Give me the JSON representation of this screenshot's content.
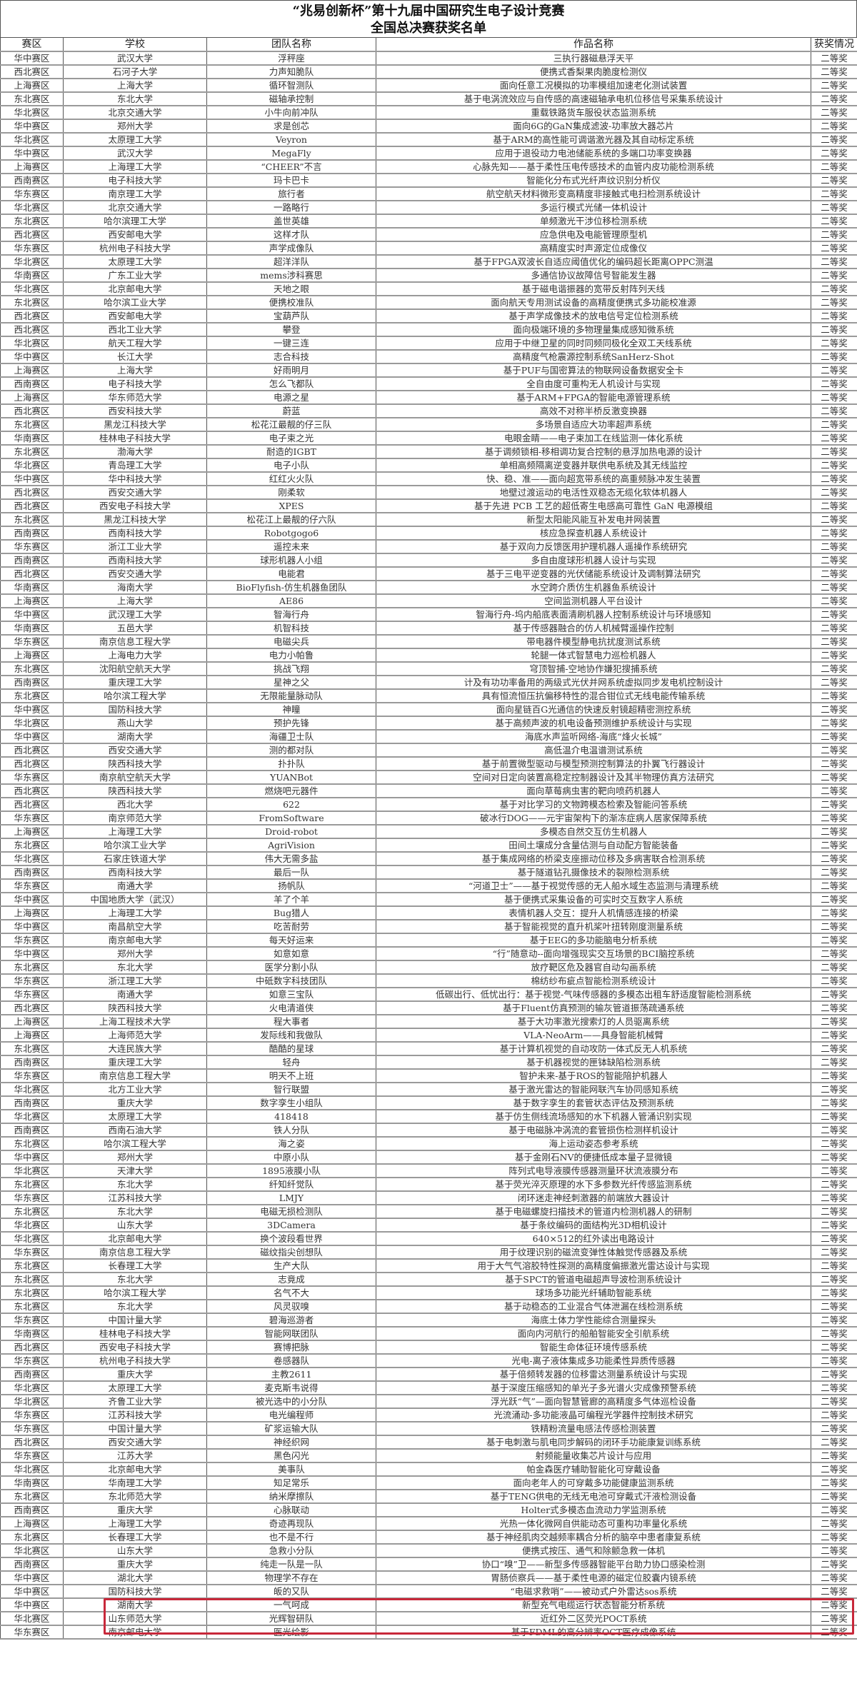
{
  "title": {
    "line1": "“兆易创新杯”第十九届中国研究生电子设计竞赛",
    "line2": "全国总决赛获奖名单"
  },
  "table": {
    "headers": [
      "赛区",
      "学校",
      "团队名称",
      "作品名称",
      "获奖情况"
    ],
    "rows": [
      [
        "华中赛区",
        "武汉大学",
        "浮秤座",
        "三执行器磁悬浮天平",
        "二等奖"
      ],
      [
        "西北赛区",
        "石河子大学",
        "力声知脆队",
        "便携式香梨果肉脆度检测仪",
        "二等奖"
      ],
      [
        "上海赛区",
        "上海大学",
        "循环智测队",
        "面向任意工况模拟的功率模组加速老化测试装置",
        "二等奖"
      ],
      [
        "东北赛区",
        "东北大学",
        "磁轴承控制",
        "基于电涡流效应与自传感的高速磁轴承电机位移信号采集系统设计",
        "二等奖"
      ],
      [
        "华北赛区",
        "北京交通大学",
        "小牛向前冲队",
        "重载铁路货车服役状态监测系统",
        "二等奖"
      ],
      [
        "华中赛区",
        "郑州大学",
        "求是创芯",
        "面向6G的GaN集成滤波-功率放大器芯片",
        "二等奖"
      ],
      [
        "华北赛区",
        "太原理工大学",
        "Veyron",
        "基于ARM的高性能可调谐激光器及其自动标定系统",
        "二等奖"
      ],
      [
        "华中赛区",
        "武汉大学",
        "MegaFly",
        "应用于退役动力电池储能系统的多端口功率变换器",
        "二等奖"
      ],
      [
        "上海赛区",
        "上海理工大学",
        "“CHEER”不言",
        "心脉先知——基于柔性压电传感技术的血管内皮功能检测系统",
        "二等奖"
      ],
      [
        "西南赛区",
        "电子科技大学",
        "玛卡巴卡",
        "智能化分布式光纤声纹识别分析仪",
        "二等奖"
      ],
      [
        "华东赛区",
        "南京理工大学",
        "旅行者",
        "航空航天材料微形变高精度非接触式电扫检测系统设计",
        "二等奖"
      ],
      [
        "华北赛区",
        "北京交通大学",
        "一路略行",
        "多运行模式光储一体机设计",
        "二等奖"
      ],
      [
        "东北赛区",
        "哈尔滨理工大学",
        "盖世英雄",
        "单频激光干涉位移检测系统",
        "二等奖"
      ],
      [
        "西北赛区",
        "西安邮电大学",
        "这样才队",
        "应急供电及电能管理原型机",
        "二等奖"
      ],
      [
        "华东赛区",
        "杭州电子科技大学",
        "声学成像队",
        "高精度实时声源定位成像仪",
        "二等奖"
      ],
      [
        "华北赛区",
        "太原理工大学",
        "超洋洋队",
        "基于FPGA双波长自适应阈值优化的编码超长距离OPPC测温",
        "二等奖"
      ],
      [
        "华南赛区",
        "广东工业大学",
        "mems涉科赛思",
        "多通信协议故障信号智能发生器",
        "二等奖"
      ],
      [
        "华北赛区",
        "北京邮电大学",
        "天地之眼",
        "基于磁电谐振器的宽带反射阵列天线",
        "二等奖"
      ],
      [
        "东北赛区",
        "哈尔滨工业大学",
        "便携校准队",
        "面向航天专用测试设备的高精度便携式多功能校准源",
        "二等奖"
      ],
      [
        "西北赛区",
        "西安邮电大学",
        "宝葫芦队",
        "基于声学成像技术的放电信号定位检测系统",
        "二等奖"
      ],
      [
        "西北赛区",
        "西北工业大学",
        "攀登",
        "面向极端环境的多物理量集成感知微系统",
        "二等奖"
      ],
      [
        "华北赛区",
        "航天工程大学",
        "一键三连",
        "应用于中继卫星的同时同频同极化全双工天线系统",
        "二等奖"
      ],
      [
        "华中赛区",
        "长江大学",
        "志合科技",
        "高精度气枪震源控制系统SanHerz-Shot",
        "二等奖"
      ],
      [
        "上海赛区",
        "上海大学",
        "好雨明月",
        "基于PUF与国密算法的物联网设备数据安全卡",
        "二等奖"
      ],
      [
        "西南赛区",
        "电子科技大学",
        "怎么飞都队",
        "全自由度可重构无人机设计与实现",
        "二等奖"
      ],
      [
        "上海赛区",
        "华东师范大学",
        "电源之星",
        "基于ARM+FPGA的智能电源管理系统",
        "二等奖"
      ],
      [
        "西北赛区",
        "西安科技大学",
        "蔚蓝",
        "高效不对称半桥反激变换器",
        "二等奖"
      ],
      [
        "东北赛区",
        "黑龙江科技大学",
        "松花江最靓的仔三队",
        "多场景自适应大功率超声系统",
        "二等奖"
      ],
      [
        "华南赛区",
        "桂林电子科技大学",
        "电子束之光",
        "电眼金睛——电子束加工在线监测一体化系统",
        "二等奖"
      ],
      [
        "东北赛区",
        "渤海大学",
        "耐造的IGBT",
        "基于调频锁相-移相调功复合控制的悬浮加热电源的设计",
        "二等奖"
      ],
      [
        "华北赛区",
        "青岛理工大学",
        "电子小队",
        "单相高频隔离逆变器并联供电系统及其无线监控",
        "二等奖"
      ],
      [
        "华中赛区",
        "华中科技大学",
        "红红火火队",
        "快、稳、准——面向超宽带系统的高重频脉冲发生装置",
        "二等奖"
      ],
      [
        "西北赛区",
        "西安交通大学",
        "刚柔软",
        "地壁过渡运动的电活性双稳态无缆化软体机器人",
        "二等奖"
      ],
      [
        "西北赛区",
        "西安电子科技大学",
        "XPES",
        "基于先进 PCB 工艺的超低寄生电感高可靠性 GaN 电源模组",
        "二等奖"
      ],
      [
        "东北赛区",
        "黑龙江科技大学",
        "松花江上最靓的仔六队",
        "新型太阳能风能互补发电并网装置",
        "二等奖"
      ],
      [
        "西南赛区",
        "西南科技大学",
        "Robotgogo6",
        "核应急探查机器人系统设计",
        "二等奖"
      ],
      [
        "华东赛区",
        "浙江工业大学",
        "遥控未来",
        "基于双向力反馈医用护理机器人遥操作系统研究",
        "二等奖"
      ],
      [
        "西南赛区",
        "西南科技大学",
        "球形机器人小组",
        "多自由度球形机器人设计与实现",
        "二等奖"
      ],
      [
        "西北赛区",
        "西安交通大学",
        "电能君",
        "基于三电平逆变器的光伏储能系统设计及调制算法研究",
        "二等奖"
      ],
      [
        "华南赛区",
        "海南大学",
        "BioFlyfish-仿生机器鱼团队",
        "水空跨介质仿生机器鱼系统设计",
        "二等奖"
      ],
      [
        "上海赛区",
        "上海大学",
        "AE86",
        "空间监测机器人平台设计",
        "二等奖"
      ],
      [
        "华中赛区",
        "武汉理工大学",
        "智海行舟",
        "智海行舟-坞内船底表面清刷机器人控制系统设计与环境感知",
        "二等奖"
      ],
      [
        "华南赛区",
        "五邑大学",
        "机智科技",
        "基于传感器融合的仿人机械臂遥操作控制",
        "二等奖"
      ],
      [
        "华东赛区",
        "南京信息工程大学",
        "电磁尖兵",
        "带电器件模型静电抗扰度测试系统",
        "二等奖"
      ],
      [
        "上海赛区",
        "上海电力大学",
        "电力小帕鲁",
        "轮腿一体式智慧电力巡检机器人",
        "二等奖"
      ],
      [
        "东北赛区",
        "沈阳航空航天大学",
        "挑战飞翔",
        "穹顶智捕-空地协作嫌犯搜捕系统",
        "二等奖"
      ],
      [
        "西南赛区",
        "重庆理工大学",
        "星神之父",
        "计及有功功率备用的两级式光伏并网系统虚拟同步发电机控制设计",
        "二等奖"
      ],
      [
        "东北赛区",
        "哈尔滨工程大学",
        "无限能量脉动队",
        "具有恒流恒压抗偏移特性的混合钳位式无线电能传输系统",
        "二等奖"
      ],
      [
        "华中赛区",
        "国防科技大学",
        "神瞳",
        "面向星链百G光通信的快速反射镜超精密测控系统",
        "二等奖"
      ],
      [
        "华北赛区",
        "燕山大学",
        "预护先锋",
        "基于高频声波的机电设备预测维护系统设计与实现",
        "二等奖"
      ],
      [
        "华中赛区",
        "湖南大学",
        "海疆卫士队",
        "海底水声监听网络-海底“烽火长城”",
        "二等奖"
      ],
      [
        "西北赛区",
        "西安交通大学",
        "测的都对队",
        "高低温介电温谱测试系统",
        "二等奖"
      ],
      [
        "西北赛区",
        "陕西科技大学",
        "扑扑队",
        "基于前置微型驱动与模型预测控制算法的扑翼飞行器设计",
        "二等奖"
      ],
      [
        "华东赛区",
        "南京航空航天大学",
        "YUANBot",
        "空间对日定向装置高稳定控制器设计及其半物理仿真方法研究",
        "二等奖"
      ],
      [
        "西北赛区",
        "陕西科技大学",
        "燃烧吧元器件",
        "面向草莓病虫害的靶向喷药机器人",
        "二等奖"
      ],
      [
        "西北赛区",
        "西北大学",
        "622",
        "基于对比学习的文物跨模态检索及智能问答系统",
        "二等奖"
      ],
      [
        "华东赛区",
        "南京师范大学",
        "FromSoftware",
        "破冰行DOG——元宇宙架构下的渐冻症病人居家保障系统",
        "二等奖"
      ],
      [
        "上海赛区",
        "上海理工大学",
        "Droid-robot",
        "多模态自然交互仿生机器人",
        "二等奖"
      ],
      [
        "东北赛区",
        "哈尔滨工业大学",
        "AgriVision",
        "田间土壤成分含量估测与自动配方智能装备",
        "二等奖"
      ],
      [
        "华北赛区",
        "石家庄铁道大学",
        "伟大无需多盐",
        "基于集成网络的桥梁支座振动位移及多病害联合检测系统",
        "二等奖"
      ],
      [
        "西南赛区",
        "西南科技大学",
        "最后一队",
        "基于隧道钻孔摄像技术的裂隙检测系统",
        "二等奖"
      ],
      [
        "华东赛区",
        "南通大学",
        "扬帆队",
        "“河道卫士”——基于视觉传感的无人船水域生态监测与清理系统",
        "二等奖"
      ],
      [
        "华中赛区",
        "中国地质大学（武汉）",
        "羊了个羊",
        "基于便携式采集设备的可实时交互数字人系统",
        "二等奖"
      ],
      [
        "上海赛区",
        "上海理工大学",
        "Bug猎人",
        "表情机器人交互：提升人机情感连接的桥梁",
        "二等奖"
      ],
      [
        "华中赛区",
        "南昌航空大学",
        "吃苦耐劳",
        "基于智能视觉的直升机桨叶扭转刚度测量系统",
        "二等奖"
      ],
      [
        "华东赛区",
        "南京邮电大学",
        "每天好运来",
        "基于EEG的多功能脑电分析系统",
        "二等奖"
      ],
      [
        "华中赛区",
        "郑州大学",
        "如意如意",
        "“行”随意动--面向增强现实交互场景的BCI脑控系统",
        "二等奖"
      ],
      [
        "东北赛区",
        "东北大学",
        "医学分割小队",
        "放疗靶区危及器官自动勾画系统",
        "二等奖"
      ],
      [
        "华东赛区",
        "浙江理工大学",
        "中砥数字科技团队",
        "棉纺纱布疵点智能检测系统设计",
        "二等奖"
      ],
      [
        "华东赛区",
        "南通大学",
        "如意三宝队",
        "低碳出行、低忧出行：基于视觉-气味传感器的多模态出租车舒适度智能检测系统",
        "二等奖"
      ],
      [
        "西北赛区",
        "陕西科技大学",
        "火电清道侠",
        "基于Fluent仿真预测的输灰管道振荡疏通系统",
        "二等奖"
      ],
      [
        "上海赛区",
        "上海工程技术大学",
        "程大事者",
        "基于大功率激光搜索灯的人员驱离系统",
        "二等奖"
      ],
      [
        "上海赛区",
        "上海师范大学",
        "发际线和我做队",
        "VLA-NeoArm——具身智能机械臂",
        "二等奖"
      ],
      [
        "东北赛区",
        "大连民族大学",
        "酷酷的星球",
        "基于计算机视觉的自动攻防一体式反无人机系统",
        "二等奖"
      ],
      [
        "西南赛区",
        "重庆理工大学",
        "轻舟",
        "基于机器视觉的匣钵缺陷检测系统",
        "二等奖"
      ],
      [
        "华东赛区",
        "南京信息工程大学",
        "明天不上班",
        "智护未来-基于ROS的智能陪护机器人",
        "二等奖"
      ],
      [
        "华北赛区",
        "北方工业大学",
        "智行联盟",
        "基于激光雷达的智能网联汽车协同感知系统",
        "二等奖"
      ],
      [
        "西南赛区",
        "重庆大学",
        "数字孪生小组队",
        "基于数字孪生的套管状态评估及预测系统",
        "二等奖"
      ],
      [
        "华北赛区",
        "太原理工大学",
        "418418",
        "基于仿生侧线流场感知的水下机器人管涌识别实现",
        "二等奖"
      ],
      [
        "西南赛区",
        "西南石油大学",
        "铁人分队",
        "基于电磁脉冲涡流的套管损伤检测样机设计",
        "二等奖"
      ],
      [
        "东北赛区",
        "哈尔滨工程大学",
        "海之姿",
        "海上运动姿态参考系统",
        "二等奖"
      ],
      [
        "华中赛区",
        "郑州大学",
        "中原小队",
        "基于金刚石NV的便捷低成本量子显微镜",
        "二等奖"
      ],
      [
        "华北赛区",
        "天津大学",
        "1895液膜小队",
        "阵列式电导液膜传感器测量环状流液膜分布",
        "二等奖"
      ],
      [
        "东北赛区",
        "东北大学",
        "纤知纤觉队",
        "基于荧光淬灭原理的水下多参数光纤传感监测系统",
        "二等奖"
      ],
      [
        "华东赛区",
        "江苏科技大学",
        "LMJY",
        "闭环迷走神经刺激器的前端放大器设计",
        "二等奖"
      ],
      [
        "东北赛区",
        "东北大学",
        "电磁无损检测队",
        "基于电磁螺旋扫描技术的管道内检测机器人的研制",
        "二等奖"
      ],
      [
        "华北赛区",
        "山东大学",
        "3DCamera",
        "基于条纹编码的面结构光3D相机设计",
        "二等奖"
      ],
      [
        "华北赛区",
        "北京邮电大学",
        "换个波段看世界",
        "640×512的红外读出电路设计",
        "二等奖"
      ],
      [
        "华东赛区",
        "南京信息工程大学",
        "磁纹指尖创想队",
        "用于纹理识别的磁流变弹性体触觉传感器及系统",
        "二等奖"
      ],
      [
        "东北赛区",
        "长春理工大学",
        "生产大队",
        "用于大气气溶胶特性探测的高精度偏振激光雷达设计与实现",
        "二等奖"
      ],
      [
        "东北赛区",
        "东北大学",
        "志竟成",
        "基于SPCT的管道电磁超声导波检测系统设计",
        "二等奖"
      ],
      [
        "东北赛区",
        "哈尔滨工程大学",
        "名气不大",
        "球场多功能光纤辅助智能系统",
        "二等奖"
      ],
      [
        "东北赛区",
        "东北大学",
        "风灵驭嗅",
        "基于动稳态的工业混合气体泄漏在线检测系统",
        "二等奖"
      ],
      [
        "华东赛区",
        "中国计量大学",
        "碧海巡游者",
        "海底土体力学性能综合测量探头",
        "二等奖"
      ],
      [
        "华南赛区",
        "桂林电子科技大学",
        "智能网联团队",
        "面向内河航行的船舶智能安全引航系统",
        "二等奖"
      ],
      [
        "西北赛区",
        "西安电子科技大学",
        "赛博把脉",
        "智能生命体征环境传感系统",
        "二等奖"
      ],
      [
        "华东赛区",
        "杭州电子科技大学",
        "卷感器队",
        "光电-离子液体集成多功能柔性异质传感器",
        "二等奖"
      ],
      [
        "西南赛区",
        "重庆大学",
        "主教2611",
        "基于倍频转发器的位移雷达测量系统设计与实现",
        "二等奖"
      ],
      [
        "华北赛区",
        "太原理工大学",
        "麦克斯韦说得",
        "基于深度压缩感知的单光子多光谱火灾成像预警系统",
        "二等奖"
      ],
      [
        "华北赛区",
        "齐鲁工业大学",
        "被光选中的小分队",
        "浮光跃“气”—面向智慧管廊的高精度多气体巡检设备",
        "二等奖"
      ],
      [
        "华东赛区",
        "江苏科技大学",
        "电光编程师",
        "光流涌动-多功能液晶可编程光学器件控制技术研究",
        "二等奖"
      ],
      [
        "华东赛区",
        "中国计量大学",
        "矿浆运输大队",
        "铁精粉流量电感法传感检测装置",
        "二等奖"
      ],
      [
        "西北赛区",
        "西安交通大学",
        "神经织网",
        "基于电刺激与肌电同步解码的闭环手功能康复训练系统",
        "二等奖"
      ],
      [
        "华东赛区",
        "江苏大学",
        "黑色闪光",
        "射频能量收集芯片设计与应用",
        "二等奖"
      ],
      [
        "华北赛区",
        "北京邮电大学",
        "美事队",
        "帕金森医疗辅助智能化可穿戴设备",
        "二等奖"
      ],
      [
        "华南赛区",
        "华南理工大学",
        "知足常乐",
        "面向老年人的可穿戴多功能健康监测系统",
        "二等奖"
      ],
      [
        "东北赛区",
        "东北师范大学",
        "纳米摩擦队",
        "基于TENG供电的无线无电池可穿戴式汗液检测设备",
        "二等奖"
      ],
      [
        "西南赛区",
        "重庆大学",
        "心脉联动",
        "Holter式多模态血流动力学监测系统",
        "二等奖"
      ],
      [
        "上海赛区",
        "上海理工大学",
        "奇迹再现队",
        "光热一体化微网自供能动态可重构功率量化系统",
        "二等奖"
      ],
      [
        "东北赛区",
        "长春理工大学",
        "也不是不行",
        "基于神经肌肉交越频率耦合分析的脑卒中患者康复系统",
        "二等奖"
      ],
      [
        "华北赛区",
        "山东大学",
        "急救小分队",
        "便携式按压、通气和除颤急救一体机",
        "二等奖"
      ],
      [
        "西南赛区",
        "重庆大学",
        "纯走一队是一队",
        "协口“嗅”卫——新型多传感器智能平台助力协口感染检测",
        "二等奖"
      ],
      [
        "华中赛区",
        "湖北大学",
        "物理学不存在",
        "胃肠侦察兵——基于柔性电源的磁定位胶囊内镜系统",
        "二等奖"
      ],
      [
        "华中赛区",
        "国防科技大学",
        "皈的又队",
        "“电磁求救哨”——被动式户外雷达sos系统",
        "二等奖"
      ],
      [
        "华中赛区",
        "湖南大学",
        "一气呵成",
        "新型充气电缆运行状态智能分析系统",
        "二等奖"
      ],
      [
        "华北赛区",
        "山东师范大学",
        "光辉智研队",
        "近红外二区荧光POCT系统",
        "二等奖"
      ],
      [
        "华东赛区",
        "南京邮电大学",
        "医光绘影",
        "基于FDML的高分辨率OCT医疗成像系统",
        "二等奖"
      ]
    ]
  },
  "highlight_color": "#c8283a"
}
